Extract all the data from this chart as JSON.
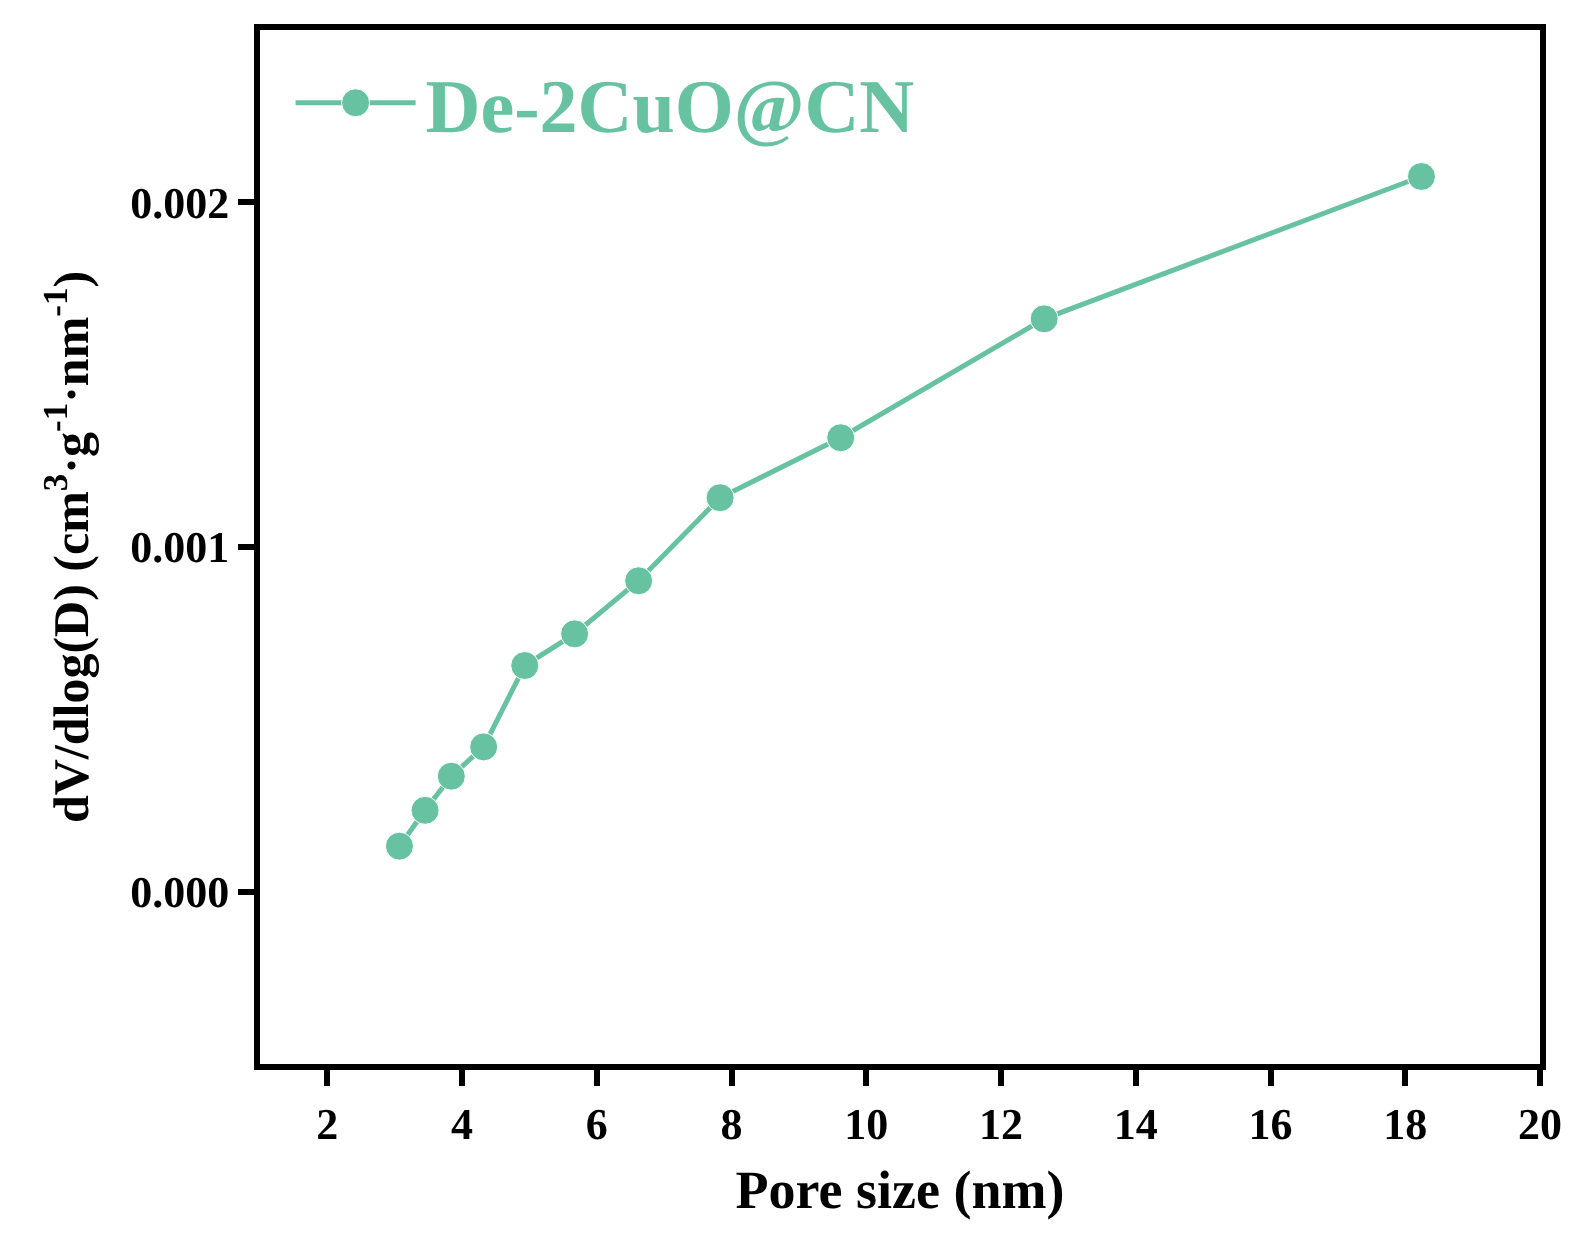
{
  "chart_data": {
    "type": "line",
    "xlabel": "Pore size (nm)",
    "ylabel": "dV/dlog(D) (cm$^{3}$·g$^{-1}$·nm$^{-1}$)",
    "x": [
      3.07,
      3.45,
      3.84,
      4.32,
      4.93,
      5.67,
      6.62,
      7.83,
      9.62,
      12.64,
      18.24
    ],
    "series": [
      {
        "name": "De-2CuO@CN",
        "color": "#66c2a0",
        "values": [
          0.000132,
          0.000236,
          0.000335,
          0.00042,
          0.000656,
          0.000748,
          0.000902,
          0.001143,
          0.001317,
          0.001662,
          0.002075
        ]
      }
    ],
    "xlim": [
      1,
      20
    ],
    "xticks": [
      2,
      4,
      6,
      8,
      10,
      12,
      14,
      16,
      18,
      20
    ],
    "ylim": [
      -0.0005,
      0.0025
    ],
    "yticks": [
      {
        "value": 0,
        "label": "0.000"
      },
      {
        "value": 0.001,
        "label": "0.001"
      },
      {
        "value": 0.002,
        "label": "0.002"
      }
    ],
    "grid": false,
    "legend": "top left",
    "marker": "circle",
    "line_style": "solid"
  }
}
